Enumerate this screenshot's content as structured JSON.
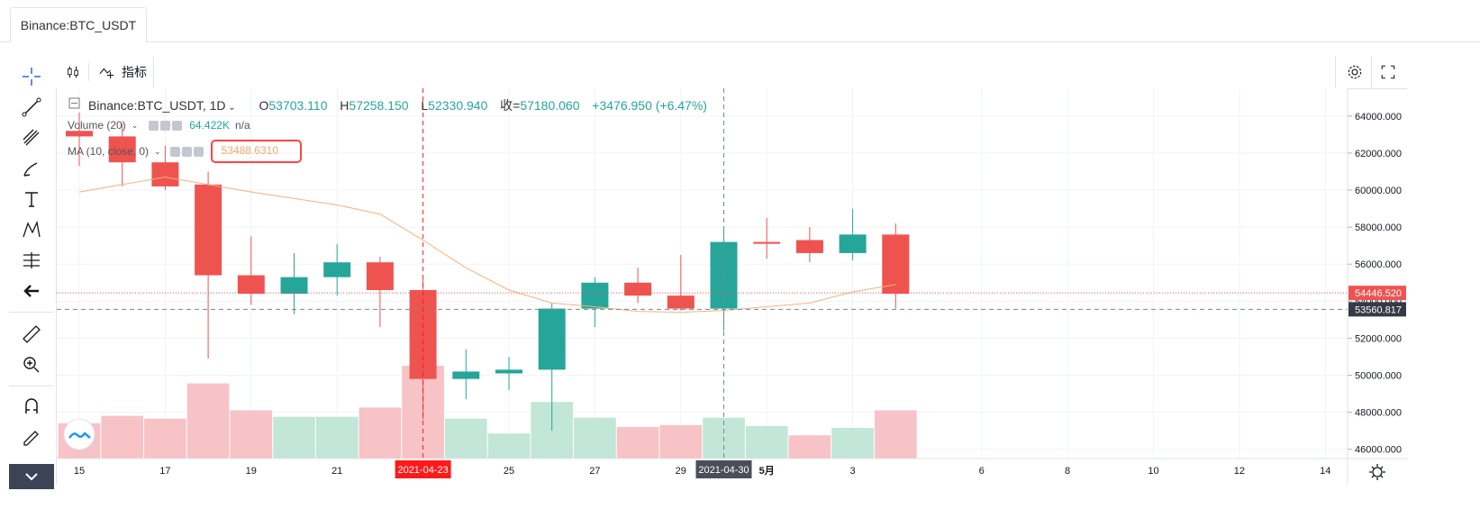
{
  "tab": {
    "label": "Binance:BTC_USDT"
  },
  "toolbar": {
    "indicators_label": "指标"
  },
  "legend": {
    "symbol": "Binance:BTC_USDT, 1D",
    "open_label": "O",
    "open": "53703.110",
    "high_label": "H",
    "high": "57258.150",
    "low_label": "L",
    "low": "52330.940",
    "close_label": "收=",
    "close": "57180.060",
    "change": "+3476.950 (+6.47%)"
  },
  "volume_legend": {
    "label": "Volume (20)",
    "value": "64.422K",
    "extra": "n/a"
  },
  "ma_legend": {
    "label": "MA (10, close, 0)",
    "value": "53488.6310"
  },
  "price_labels": {
    "last": "54446.520",
    "crosshair": "53560.817"
  },
  "time_labels": {
    "crosshair_red": "2021-04-23",
    "crosshair_grey": "2021-04-30"
  },
  "colors": {
    "up": "#26a69a",
    "down": "#ef5350",
    "up_vol": "#c2e6d8",
    "down_vol": "#f7c3c6",
    "ma": "#f7b27d"
  },
  "chart_data": {
    "type": "candlestick",
    "y_axis": {
      "min": 45500,
      "max": 65500,
      "ticks": [
        "64000.000",
        "62000.000",
        "60000.000",
        "58000.000",
        "56000.000",
        "54000.000",
        "52000.000",
        "50000.000",
        "48000.000",
        "46000.000"
      ]
    },
    "x_ticks": [
      {
        "label": "15",
        "day": 0
      },
      {
        "label": "17",
        "day": 2
      },
      {
        "label": "19",
        "day": 4
      },
      {
        "label": "21",
        "day": 6
      },
      {
        "label": "25",
        "day": 10
      },
      {
        "label": "27",
        "day": 12
      },
      {
        "label": "29",
        "day": 14
      },
      {
        "label": "5月",
        "day": 16
      },
      {
        "label": "3",
        "day": 18
      },
      {
        "label": "6",
        "day": 21
      },
      {
        "label": "8",
        "day": 23
      },
      {
        "label": "10",
        "day": 25
      },
      {
        "label": "12",
        "day": 27
      },
      {
        "label": "14",
        "day": 29
      }
    ],
    "candles": [
      {
        "day": 0,
        "o": 63200,
        "h": 64200,
        "l": 61300,
        "c": 62900
      },
      {
        "day": 1,
        "o": 62900,
        "h": 63600,
        "l": 60200,
        "c": 61500
      },
      {
        "day": 2,
        "o": 61500,
        "h": 62400,
        "l": 60000,
        "c": 60200
      },
      {
        "day": 3,
        "o": 60300,
        "h": 61000,
        "l": 50900,
        "c": 55400
      },
      {
        "day": 4,
        "o": 55400,
        "h": 57500,
        "l": 53800,
        "c": 54400
      },
      {
        "day": 5,
        "o": 54400,
        "h": 56600,
        "l": 53300,
        "c": 55300
      },
      {
        "day": 6,
        "o": 55300,
        "h": 57100,
        "l": 54300,
        "c": 56100
      },
      {
        "day": 7,
        "o": 56100,
        "h": 56400,
        "l": 52600,
        "c": 54600
      },
      {
        "day": 8,
        "o": 54600,
        "h": 55200,
        "l": 47600,
        "c": 49800
      },
      {
        "day": 9,
        "o": 49800,
        "h": 51400,
        "l": 48700,
        "c": 50200
      },
      {
        "day": 10,
        "o": 50100,
        "h": 51000,
        "l": 49200,
        "c": 50300
      },
      {
        "day": 11,
        "o": 50300,
        "h": 53900,
        "l": 47000,
        "c": 53600
      },
      {
        "day": 12,
        "o": 53600,
        "h": 55300,
        "l": 52600,
        "c": 55000
      },
      {
        "day": 13,
        "o": 55000,
        "h": 55800,
        "l": 53900,
        "c": 54300
      },
      {
        "day": 14,
        "o": 54300,
        "h": 56500,
        "l": 53500,
        "c": 53600
      },
      {
        "day": 15,
        "o": 53600,
        "h": 58000,
        "l": 52400,
        "c": 57200
      },
      {
        "day": 16,
        "o": 57200,
        "h": 58500,
        "l": 56300,
        "c": 57100
      },
      {
        "day": 17,
        "o": 57300,
        "h": 58000,
        "l": 56100,
        "c": 56600
      },
      {
        "day": 18,
        "o": 56600,
        "h": 59000,
        "l": 56200,
        "c": 57600
      },
      {
        "day": 19,
        "o": 57600,
        "h": 58200,
        "l": 53600,
        "c": 54400
      }
    ],
    "volume": [
      {
        "day": 0,
        "v": 0.38,
        "up": false
      },
      {
        "day": 1,
        "v": 0.46,
        "up": false
      },
      {
        "day": 2,
        "v": 0.43,
        "up": false
      },
      {
        "day": 3,
        "v": 0.81,
        "up": false
      },
      {
        "day": 4,
        "v": 0.52,
        "up": false
      },
      {
        "day": 5,
        "v": 0.45,
        "up": true
      },
      {
        "day": 6,
        "v": 0.45,
        "up": true
      },
      {
        "day": 7,
        "v": 0.55,
        "up": false
      },
      {
        "day": 8,
        "v": 1.0,
        "up": false
      },
      {
        "day": 9,
        "v": 0.43,
        "up": true
      },
      {
        "day": 10,
        "v": 0.27,
        "up": true
      },
      {
        "day": 11,
        "v": 0.61,
        "up": true
      },
      {
        "day": 12,
        "v": 0.44,
        "up": true
      },
      {
        "day": 13,
        "v": 0.34,
        "up": false
      },
      {
        "day": 14,
        "v": 0.36,
        "up": false
      },
      {
        "day": 15,
        "v": 0.44,
        "up": true
      },
      {
        "day": 16,
        "v": 0.35,
        "up": true
      },
      {
        "day": 17,
        "v": 0.25,
        "up": false
      },
      {
        "day": 18,
        "v": 0.33,
        "up": true
      },
      {
        "day": 19,
        "v": 0.52,
        "up": false
      }
    ],
    "ma": [
      {
        "day": 0,
        "v": 59900
      },
      {
        "day": 2,
        "v": 60700
      },
      {
        "day": 4,
        "v": 59900
      },
      {
        "day": 6,
        "v": 59200
      },
      {
        "day": 7,
        "v": 58700
      },
      {
        "day": 8,
        "v": 57300
      },
      {
        "day": 9,
        "v": 55800
      },
      {
        "day": 10,
        "v": 54600
      },
      {
        "day": 11,
        "v": 53900
      },
      {
        "day": 12,
        "v": 53700
      },
      {
        "day": 13,
        "v": 53450
      },
      {
        "day": 14,
        "v": 53400
      },
      {
        "day": 15,
        "v": 53500
      },
      {
        "day": 16,
        "v": 53700
      },
      {
        "day": 17,
        "v": 53900
      },
      {
        "day": 18,
        "v": 54500
      },
      {
        "day": 19,
        "v": 54900
      }
    ],
    "last_price": 54446.52,
    "crosshair_price": 53560.817,
    "crosshair_days": [
      8,
      15
    ]
  }
}
